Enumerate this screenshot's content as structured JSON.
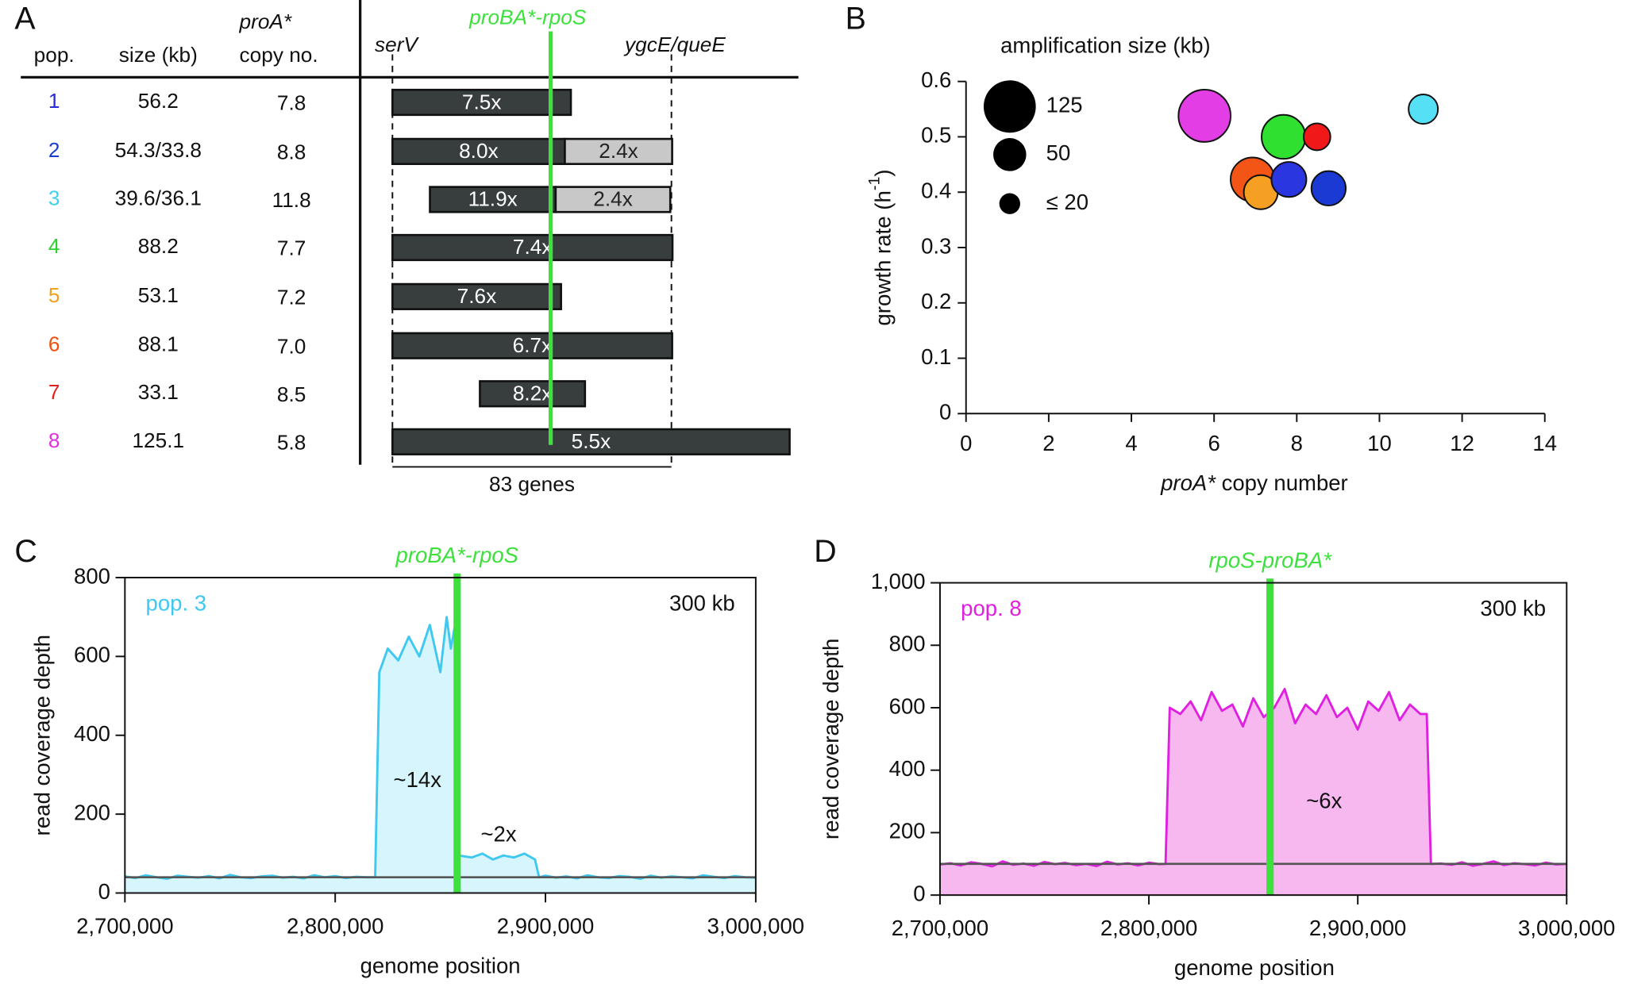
{
  "chart_data": [
    {
      "panel": "A",
      "type": "amplicon-map",
      "headers": {
        "pop": "pop.",
        "size": "size (kb)",
        "copy_line1": "proA*",
        "copy_line2": "copy no."
      },
      "junction_label": "proBA*-rpoS",
      "left_gene": "serV",
      "right_gene": "ygcE/queE",
      "span_label": "83 genes",
      "rows": [
        {
          "pop": "1",
          "color": "#2a2ad8",
          "size": "56.2",
          "copy": "7.8",
          "segments": [
            {
              "kb": 56.2,
              "label": "7.5x",
              "color": "#383e3e",
              "text_color": "#ffffff"
            }
          ]
        },
        {
          "pop": "2",
          "color": "#1a3fd0",
          "size": "54.3/33.8",
          "copy": "8.8",
          "segments": [
            {
              "kb": 54.3,
              "label": "8.0x",
              "color": "#383e3e",
              "text_color": "#ffffff"
            },
            {
              "kb": 33.8,
              "label": "2.4x",
              "color": "#c8c8c8",
              "text_color": "#222222"
            }
          ]
        },
        {
          "pop": "3",
          "color": "#40d0f0",
          "size": "39.6/36.1",
          "copy": "11.8",
          "segments": [
            {
              "kb": 39.6,
              "label": "11.9x",
              "color": "#383e3e",
              "text_color": "#ffffff"
            },
            {
              "kb": 36.1,
              "label": "2.4x",
              "color": "#c8c8c8",
              "text_color": "#222222"
            }
          ]
        },
        {
          "pop": "4",
          "color": "#30d030",
          "size": "88.2",
          "copy": "7.7",
          "segments": [
            {
              "kb": 88.2,
              "label": "7.4x",
              "color": "#383e3e",
              "text_color": "#ffffff"
            }
          ]
        },
        {
          "pop": "5",
          "color": "#f0a020",
          "size": "53.1",
          "copy": "7.2",
          "segments": [
            {
              "kb": 53.1,
              "label": "7.6x",
              "color": "#383e3e",
              "text_color": "#ffffff"
            }
          ]
        },
        {
          "pop": "6",
          "color": "#f05010",
          "size": "88.1",
          "copy": "7.0",
          "segments": [
            {
              "kb": 88.1,
              "label": "6.7x",
              "color": "#383e3e",
              "text_color": "#ffffff"
            }
          ]
        },
        {
          "pop": "7",
          "color": "#e02020",
          "size": "33.1",
          "copy": "8.5",
          "segments": [
            {
              "kb": 33.1,
              "label": "8.2x",
              "color": "#383e3e",
              "text_color": "#ffffff"
            }
          ]
        },
        {
          "pop": "8",
          "color": "#e030e0",
          "size": "125.1",
          "copy": "5.8",
          "segments": [
            {
              "kb": 125.1,
              "label": "5.5x",
              "color": "#383e3e",
              "text_color": "#ffffff"
            }
          ]
        }
      ]
    },
    {
      "panel": "B",
      "type": "bubble",
      "x_label": [
        "proA*",
        " copy number"
      ],
      "y_label": [
        "growth rate (h",
        "-1",
        ")"
      ],
      "xlim": [
        0,
        14
      ],
      "xticks": [
        0,
        2,
        4,
        6,
        8,
        10,
        12,
        14
      ],
      "ylim": [
        0,
        0.6
      ],
      "yticks": [
        0,
        0.1,
        0.2,
        0.3,
        0.4,
        0.5,
        0.6
      ],
      "size_legend": {
        "title": "amplification size (kb)",
        "entries": [
          125,
          50,
          {
            "value": 20,
            "label": "≤ 20"
          }
        ]
      },
      "points": [
        {
          "x": 5.77,
          "y": 0.538,
          "size": 125.1,
          "color": "#e33ee6"
        },
        {
          "x": 7.68,
          "y": 0.5,
          "size": 88.2,
          "color": "#30e030"
        },
        {
          "x": 8.49,
          "y": 0.5,
          "size": 33.1,
          "color": "#f01818"
        },
        {
          "x": 6.93,
          "y": 0.423,
          "size": 88.1,
          "color": "#f25516"
        },
        {
          "x": 7.13,
          "y": 0.4,
          "size": 53.1,
          "color": "#f5a023"
        },
        {
          "x": 7.81,
          "y": 0.423,
          "size": 56.2,
          "color": "#2a36e0"
        },
        {
          "x": 8.77,
          "y": 0.407,
          "size": 54.3,
          "color": "#1b3ad4"
        },
        {
          "x": 11.06,
          "y": 0.55,
          "size": 39.6,
          "color": "#55e0f5"
        }
      ]
    },
    {
      "panel": "C",
      "type": "area",
      "label": "pop. 3",
      "window_label": "300 kb",
      "junction_label": "proBA*-rpoS",
      "junction": 2858000,
      "baseline": 40,
      "annotations": [
        "~14x",
        "~2x"
      ],
      "x_label": "genome position",
      "y_label": "read coverage depth",
      "xlim": [
        2700000,
        3000000
      ],
      "xticks": [
        {
          "value": 2700000,
          "label": "2,700,000"
        },
        {
          "value": 2800000,
          "label": "2,800,000"
        },
        {
          "value": 2900000,
          "label": "2,900,000"
        },
        {
          "value": 3000000,
          "label": "3,000,000"
        }
      ],
      "ylim": [
        0,
        800
      ],
      "yticks": [
        0,
        200,
        400,
        600,
        800
      ],
      "color": "#40c8f0",
      "fill": "#d6f5fd",
      "x": [
        2700000,
        2705000,
        2710000,
        2715000,
        2720000,
        2725000,
        2730000,
        2735000,
        2740000,
        2745000,
        2750000,
        2755000,
        2760000,
        2765000,
        2770000,
        2775000,
        2780000,
        2785000,
        2790000,
        2795000,
        2800000,
        2805000,
        2810000,
        2815000,
        2819000,
        2821000,
        2825000,
        2830000,
        2835000,
        2840000,
        2845000,
        2850000,
        2853000,
        2855000,
        2857000,
        2859000,
        2865000,
        2870000,
        2875000,
        2880000,
        2885000,
        2890000,
        2895000,
        2897000,
        2900000,
        2905000,
        2910000,
        2915000,
        2920000,
        2925000,
        2930000,
        2935000,
        2940000,
        2945000,
        2950000,
        2955000,
        2960000,
        2965000,
        2970000,
        2975000,
        2980000,
        2985000,
        2990000,
        2995000,
        3000000
      ],
      "values": [
        42,
        38,
        45,
        40,
        36,
        44,
        41,
        39,
        43,
        37,
        46,
        40,
        38,
        42,
        44,
        39,
        41,
        37,
        45,
        40,
        43,
        38,
        41,
        40,
        40,
        560,
        620,
        590,
        650,
        600,
        680,
        560,
        700,
        620,
        680,
        95,
        90,
        100,
        85,
        95,
        90,
        100,
        85,
        40,
        44,
        39,
        42,
        37,
        45,
        40,
        38,
        43,
        41,
        36,
        44,
        39,
        42,
        40,
        37,
        45,
        41,
        38,
        43,
        40,
        39
      ]
    },
    {
      "panel": "D",
      "type": "area",
      "label": "pop. 8",
      "window_label": "300 kb",
      "junction_label": "rpoS-proBA*",
      "junction": 2858000,
      "baseline": 100,
      "annotations": [
        "~6x"
      ],
      "x_label": "genome position",
      "y_label": "read coverage depth",
      "xlim": [
        2700000,
        3000000
      ],
      "xticks": [
        {
          "value": 2700000,
          "label": "2,700,000"
        },
        {
          "value": 2800000,
          "label": "2,800,000"
        },
        {
          "value": 2900000,
          "label": "2,900,000"
        },
        {
          "value": 3000000,
          "label": "3,000,000"
        }
      ],
      "ylim": [
        0,
        1000
      ],
      "yticks": [
        0,
        200,
        400,
        600,
        800,
        {
          "value": 1000,
          "label": "1,000"
        }
      ],
      "color": "#e020e0",
      "fill": "#f7b8f0",
      "x": [
        2700000,
        2705000,
        2710000,
        2715000,
        2720000,
        2725000,
        2730000,
        2735000,
        2740000,
        2745000,
        2750000,
        2755000,
        2760000,
        2765000,
        2770000,
        2775000,
        2780000,
        2785000,
        2790000,
        2795000,
        2800000,
        2805000,
        2808000,
        2810000,
        2815000,
        2820000,
        2825000,
        2830000,
        2835000,
        2840000,
        2845000,
        2850000,
        2855000,
        2860000,
        2865000,
        2870000,
        2875000,
        2880000,
        2885000,
        2890000,
        2895000,
        2900000,
        2905000,
        2910000,
        2915000,
        2920000,
        2925000,
        2930000,
        2933000,
        2935000,
        2940000,
        2945000,
        2950000,
        2955000,
        2960000,
        2965000,
        2970000,
        2975000,
        2980000,
        2985000,
        2990000,
        2995000,
        3000000
      ],
      "values": [
        98,
        102,
        95,
        105,
        100,
        92,
        108,
        97,
        101,
        94,
        106,
        99,
        103,
        96,
        100,
        93,
        107,
        98,
        102,
        95,
        104,
        99,
        100,
        600,
        580,
        620,
        560,
        650,
        590,
        610,
        540,
        630,
        570,
        600,
        660,
        550,
        610,
        580,
        640,
        570,
        600,
        530,
        620,
        590,
        650,
        560,
        610,
        580,
        580,
        100,
        101,
        97,
        105,
        94,
        100,
        108,
        96,
        102,
        99,
        95,
        104,
        98,
        100
      ]
    }
  ]
}
